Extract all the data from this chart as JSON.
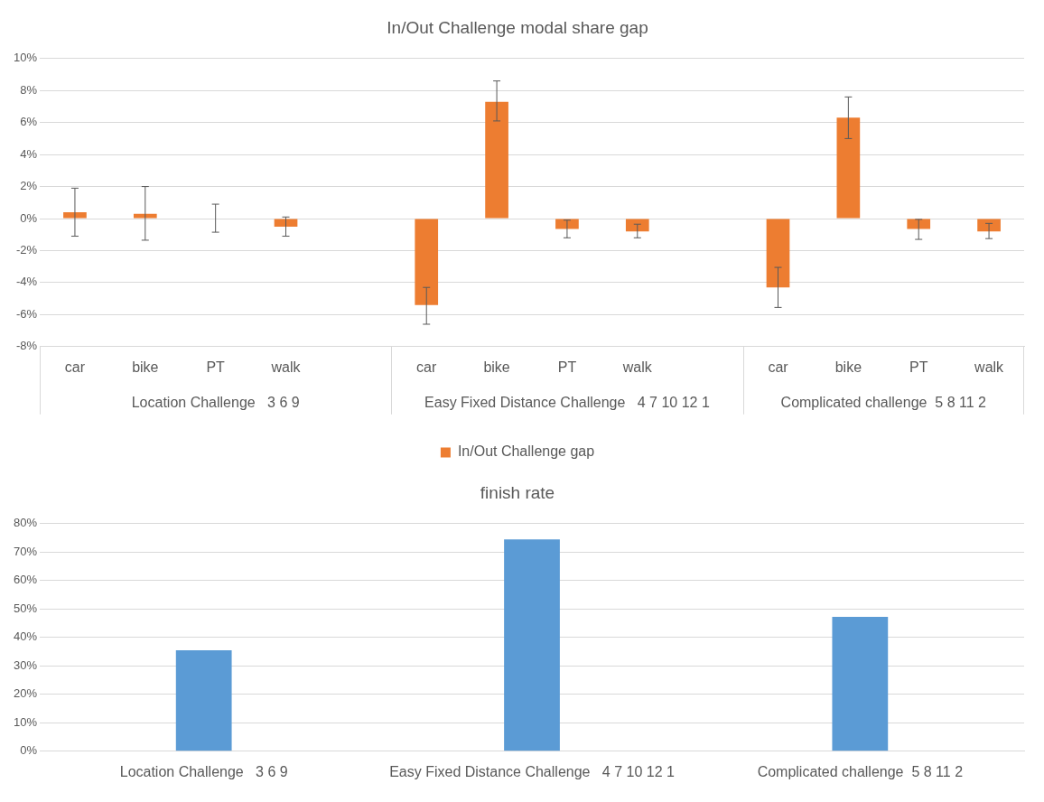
{
  "chart_data": [
    {
      "type": "bar",
      "title": "In/Out Challenge modal share gap",
      "categories": [
        "car",
        "bike",
        "PT",
        "walk",
        null,
        "car",
        "bike",
        "PT",
        "walk",
        null,
        "car",
        "bike",
        "PT",
        "walk"
      ],
      "series": [
        {
          "name": "In/Out Challenge gap",
          "color": "#ed7d31",
          "values": [
            0.4,
            0.3,
            0,
            -0.5,
            null,
            -5.4,
            7.3,
            -0.65,
            -0.8,
            null,
            -4.3,
            6.3,
            -0.65,
            -0.8
          ],
          "errors": [
            [
              -1.1,
              1.9
            ],
            [
              -1.35,
              2.0
            ],
            [
              -0.85,
              0.9
            ],
            [
              -1.1,
              0.1
            ],
            null,
            [
              -6.6,
              -4.3
            ],
            [
              6.1,
              8.6
            ],
            [
              -1.2,
              -0.1
            ],
            [
              -1.2,
              -0.35
            ],
            null,
            [
              -5.55,
              -3.05
            ],
            [
              5.0,
              7.6
            ],
            [
              -1.3,
              -0.05
            ],
            [
              -1.25,
              -0.3
            ]
          ]
        }
      ],
      "ylim": [
        -8,
        10
      ],
      "yticks": [
        {
          "value": -8,
          "label": "-8%"
        },
        {
          "value": -6,
          "label": "-6%"
        },
        {
          "value": -4,
          "label": "-4%"
        },
        {
          "value": -2,
          "label": "-2%"
        },
        {
          "value": 0,
          "label": "0%"
        },
        {
          "value": 2,
          "label": "2%"
        },
        {
          "value": 4,
          "label": "4%"
        },
        {
          "value": 6,
          "label": "6%"
        },
        {
          "value": 8,
          "label": "8%"
        },
        {
          "value": 10,
          "label": "10%"
        }
      ],
      "annotations": [
        "Location Challenge   3 6 9",
        "Easy Fixed Distance Challenge   4 7 10 12 1",
        "Complicated challenge  5 8 11 2"
      ],
      "grid": "y",
      "legend": "bottom"
    },
    {
      "type": "bar",
      "title": "finish rate",
      "categories": [
        "Location Challenge   3 6 9",
        "Easy Fixed Distance Challenge   4 7 10 12 1",
        "Complicated challenge  5 8 11 2"
      ],
      "series": [
        {
          "color": "#5b9bd5",
          "values": [
            35.5,
            74.5,
            47.2
          ]
        }
      ],
      "ylim": [
        0,
        80
      ],
      "yticks": [
        {
          "value": 0,
          "label": "0%"
        },
        {
          "value": 10,
          "label": "10%"
        },
        {
          "value": 20,
          "label": "20%"
        },
        {
          "value": 30,
          "label": "30%"
        },
        {
          "value": 40,
          "label": "40%"
        },
        {
          "value": 50,
          "label": "50%"
        },
        {
          "value": 60,
          "label": "60%"
        },
        {
          "value": 70,
          "label": "70%"
        },
        {
          "value": 80,
          "label": "80%"
        }
      ],
      "grid": "y"
    }
  ]
}
